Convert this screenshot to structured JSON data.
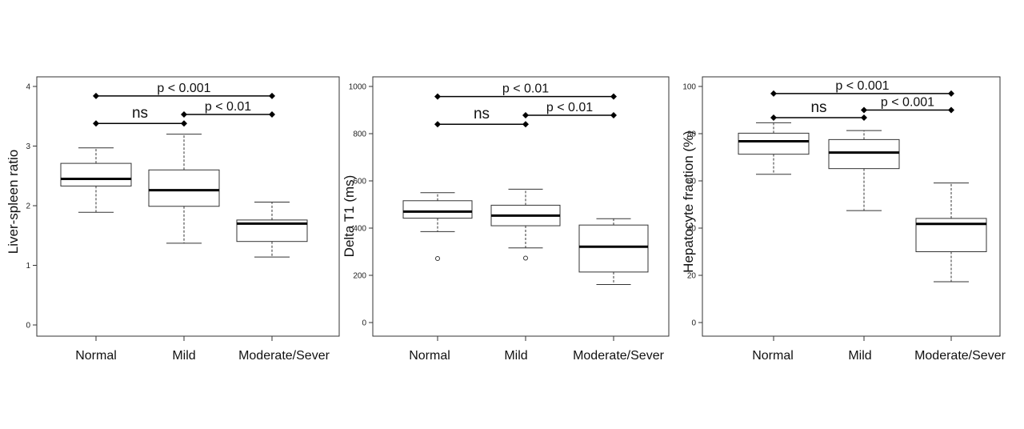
{
  "chart_data": [
    {
      "type": "box",
      "ylabel": "Liver-spleen  ratio",
      "ylim": [
        0,
        4
      ],
      "yticks": [
        0,
        1,
        2,
        3,
        4
      ],
      "categories": [
        "Normal",
        "Mild",
        "Moderate/Sever"
      ],
      "boxes": [
        {
          "whisker_low": 1.89,
          "q1": 2.33,
          "median": 2.45,
          "q3": 2.71,
          "whisker_high": 2.97,
          "outliers": []
        },
        {
          "whisker_low": 1.37,
          "q1": 1.99,
          "median": 2.26,
          "q3": 2.6,
          "whisker_high": 3.2,
          "outliers": []
        },
        {
          "whisker_low": 1.14,
          "q1": 1.4,
          "median": 1.7,
          "q3": 1.76,
          "whisker_high": 2.06,
          "outliers": []
        }
      ],
      "comparisons": [
        {
          "from": 0,
          "to": 2,
          "y": 3.84,
          "label": "p < 0.001"
        },
        {
          "from": 0,
          "to": 1,
          "y": 3.38,
          "label": "ns"
        },
        {
          "from": 1,
          "to": 2,
          "y": 3.53,
          "label": "p < 0.01"
        }
      ]
    },
    {
      "type": "box",
      "ylabel": "Delta T1 (ms)",
      "ylim": [
        0,
        1000
      ],
      "yticks": [
        0,
        200,
        400,
        600,
        800,
        1000
      ],
      "categories": [
        "Normal",
        "Mild",
        "Moderate/Sever"
      ],
      "boxes": [
        {
          "whisker_low": 385,
          "q1": 442,
          "median": 470,
          "q3": 516,
          "whisker_high": 550,
          "outliers": [
            271
          ]
        },
        {
          "whisker_low": 316,
          "q1": 410,
          "median": 453,
          "q3": 497,
          "whisker_high": 565,
          "outliers": [
            273
          ]
        },
        {
          "whisker_low": 161,
          "q1": 214,
          "median": 321,
          "q3": 413,
          "whisker_high": 440,
          "outliers": []
        }
      ],
      "comparisons": [
        {
          "from": 0,
          "to": 2,
          "y": 957,
          "label": "p < 0.01"
        },
        {
          "from": 0,
          "to": 1,
          "y": 840,
          "label": "ns"
        },
        {
          "from": 1,
          "to": 2,
          "y": 878,
          "label": "p < 0.01"
        }
      ]
    },
    {
      "type": "box",
      "ylabel": "Hepatocyte fraction (%)",
      "ylim": [
        0,
        100
      ],
      "yticks": [
        0,
        20,
        40,
        60,
        80,
        100
      ],
      "categories": [
        "Normal",
        "Mild",
        "Moderate/Sever"
      ],
      "boxes": [
        {
          "whisker_low": 62.8,
          "q1": 71.3,
          "median": 76.8,
          "q3": 80.2,
          "whisker_high": 84.6,
          "outliers": []
        },
        {
          "whisker_low": 47.4,
          "q1": 65.2,
          "median": 72.0,
          "q3": 77.5,
          "whisker_high": 81.3,
          "outliers": []
        },
        {
          "whisker_low": 17.3,
          "q1": 30.0,
          "median": 41.8,
          "q3": 44.1,
          "whisker_high": 59.1,
          "outliers": []
        }
      ],
      "comparisons": [
        {
          "from": 0,
          "to": 2,
          "y": 97.0,
          "label": "p < 0.001"
        },
        {
          "from": 0,
          "to": 1,
          "y": 86.8,
          "label": "ns"
        },
        {
          "from": 1,
          "to": 2,
          "y": 90.0,
          "label": "p < 0.001"
        }
      ]
    }
  ]
}
